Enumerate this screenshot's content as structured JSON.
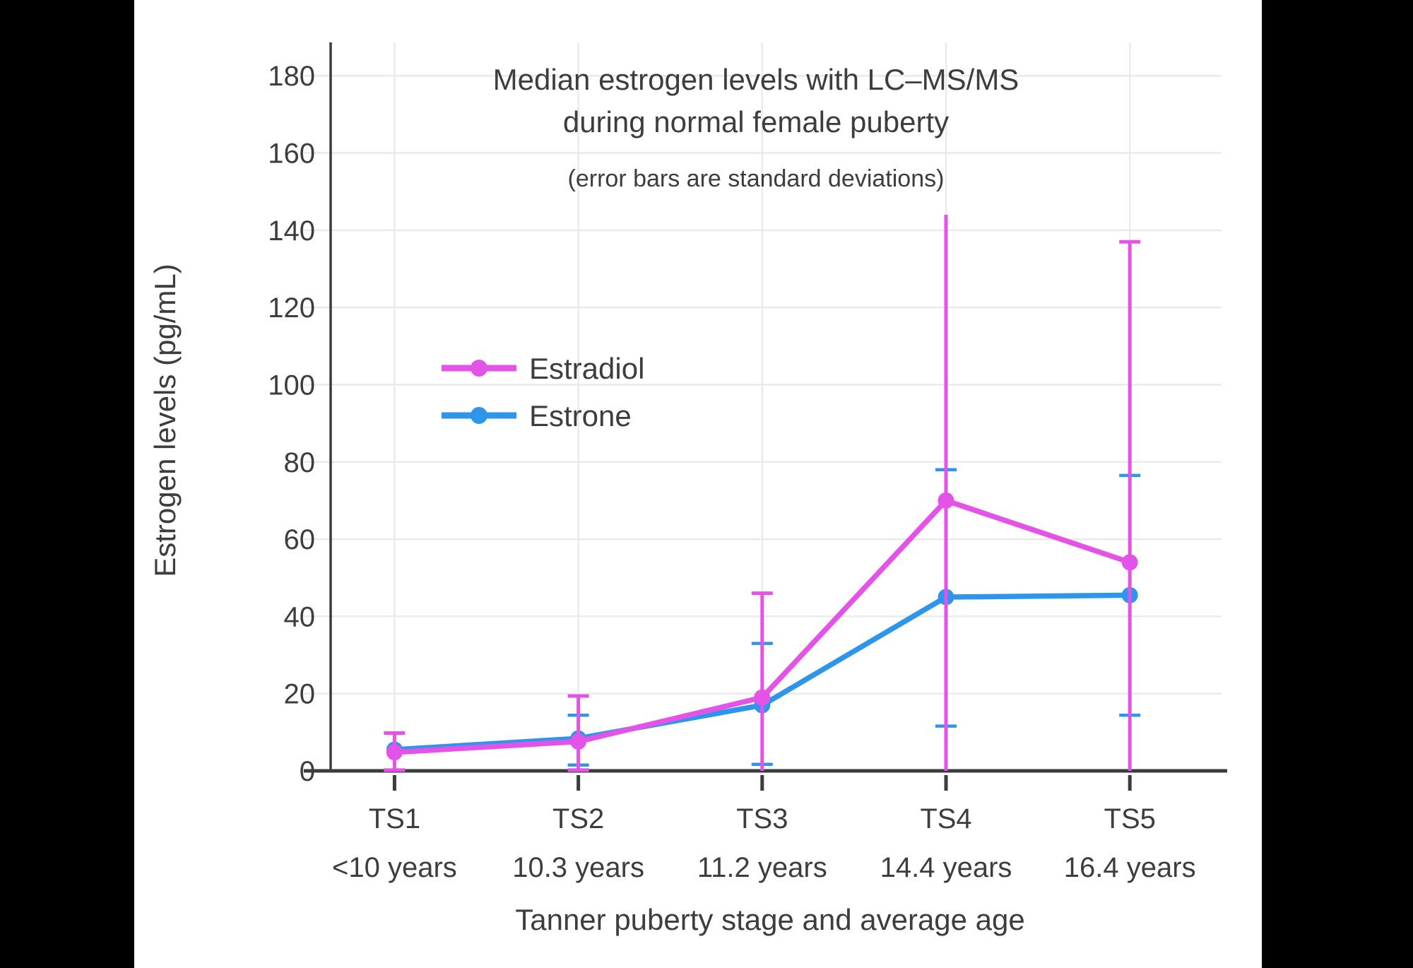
{
  "chart_data": {
    "type": "line",
    "title": "Median estrogen levels with LC–MS/MS during normal female puberty",
    "title_line1": "Median estrogen levels with LC–MS/MS",
    "title_line2": "during normal female puberty",
    "subtitle": "(error bars are standard deviations)",
    "xlabel": "Tanner puberty stage and average age",
    "ylabel": "Estrogen levels (pg/mL)",
    "ylim": [
      0,
      190
    ],
    "yticks": [
      0,
      20,
      40,
      60,
      80,
      100,
      120,
      140,
      160,
      180
    ],
    "grid": true,
    "legend_position": "inside-left-middle",
    "categories": [
      {
        "stage": "TS1",
        "age": "<10 years"
      },
      {
        "stage": "TS2",
        "age": "10.3 years"
      },
      {
        "stage": "TS3",
        "age": "11.2 years"
      },
      {
        "stage": "TS4",
        "age": "14.4 years"
      },
      {
        "stage": "TS5",
        "age": "16.4 years"
      }
    ],
    "series": [
      {
        "name": "Estradiol",
        "color": "#E453E7",
        "values": [
          4.8,
          7.6,
          19,
          70,
          54
        ],
        "err_top": [
          9.8,
          19.4,
          46,
          144,
          137
        ],
        "err_bottom": [
          0.2,
          0.2,
          0,
          0,
          0
        ],
        "cap_top": [
          true,
          true,
          true,
          false,
          true
        ],
        "cap_bottom": [
          true,
          true,
          false,
          false,
          false
        ]
      },
      {
        "name": "Estrone",
        "color": "#2E96EA",
        "values": [
          5.5,
          8.4,
          17,
          45,
          45.5
        ],
        "err_top": [
          null,
          14.4,
          33,
          78,
          76.5
        ],
        "err_bottom": [
          null,
          1.5,
          1.7,
          11.6,
          14.4
        ],
        "cap_top": [
          false,
          true,
          true,
          true,
          true
        ],
        "cap_bottom": [
          false,
          true,
          true,
          true,
          true
        ]
      }
    ],
    "colors": {
      "text": "#3D3D3D",
      "axis": "#3C3C3C",
      "gridline": "#EAEAEA",
      "background": "#FFFFFF",
      "letterbox": "#000000"
    }
  }
}
